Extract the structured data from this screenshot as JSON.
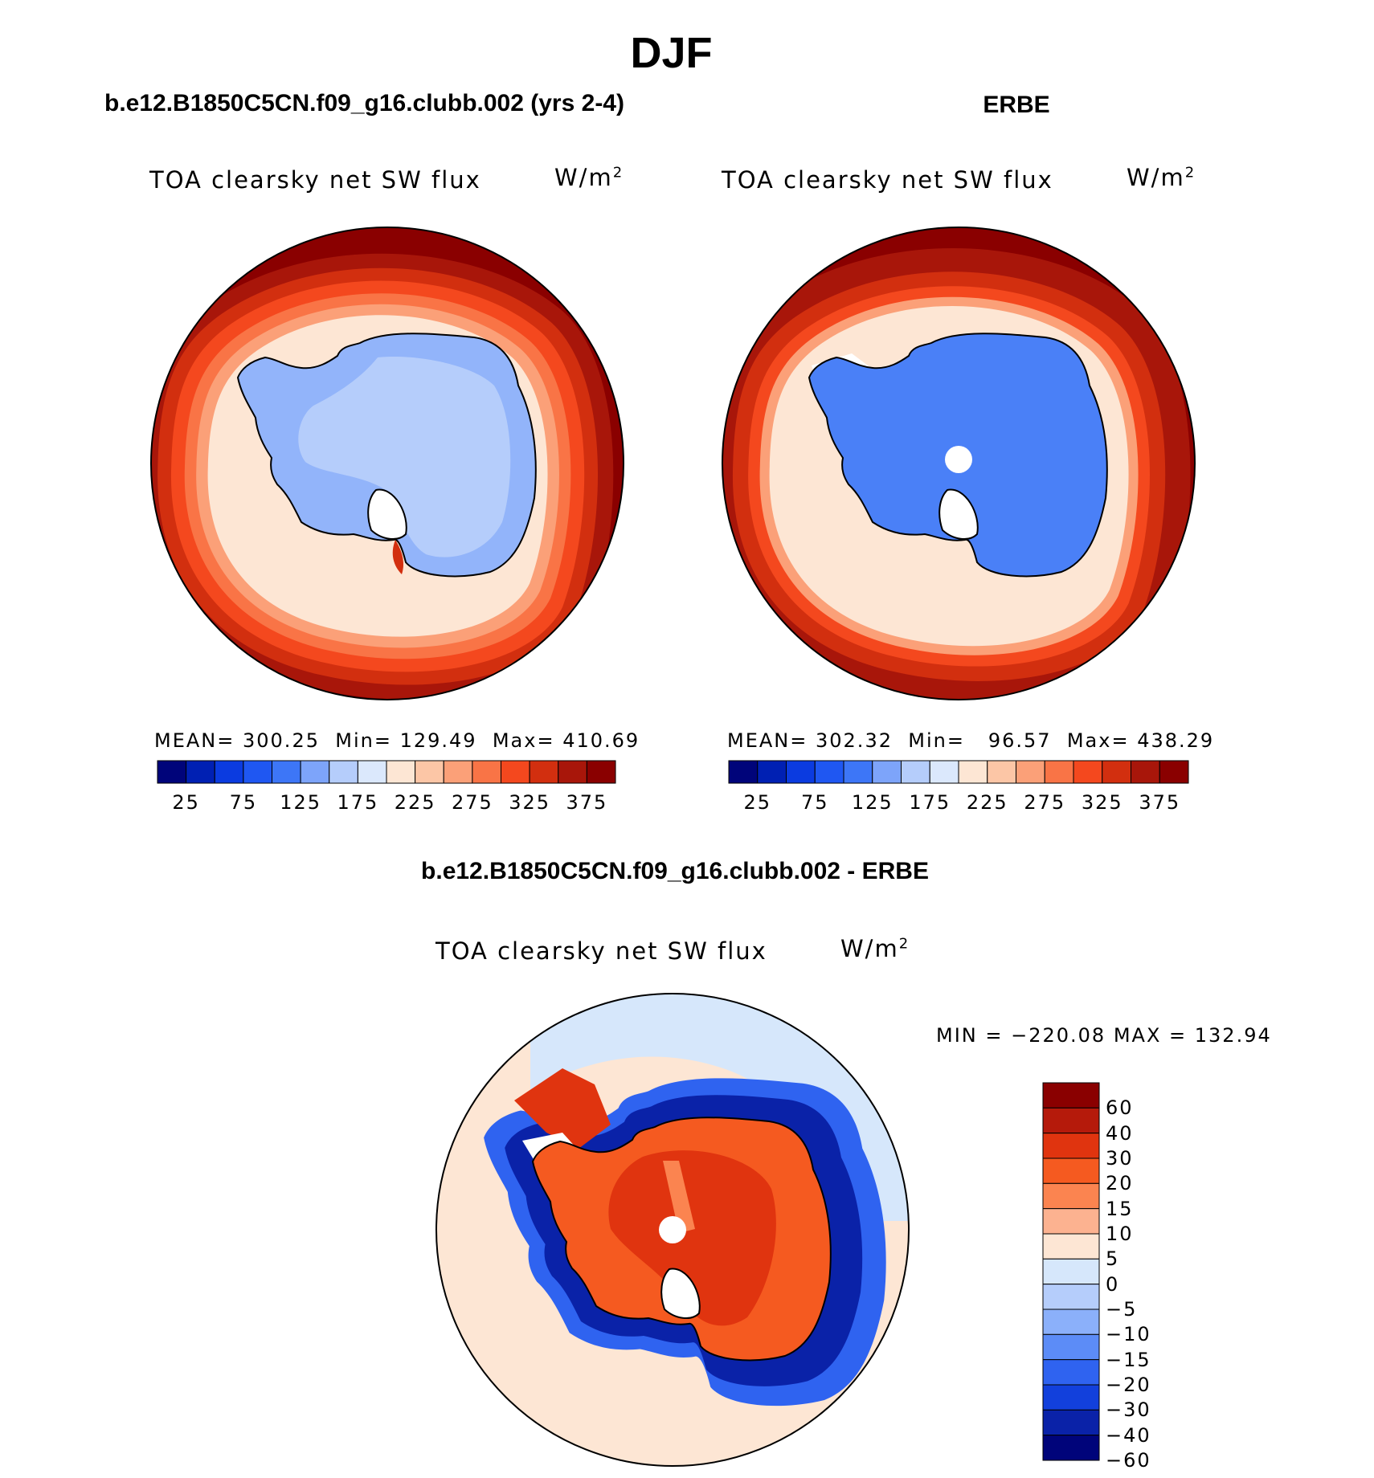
{
  "figure": {
    "title": "DJF",
    "left_panel_title": "b.e12.B1850C5CN.f09_g16.clubb.002 (yrs 2-4)",
    "right_panel_title": "ERBE",
    "difference_title": "b.e12.B1850C5CN.f09_g16.clubb.002 - ERBE"
  },
  "panels": {
    "model": {
      "variable": "TOA clearsky net SW flux",
      "unit": "W/m",
      "unit_exp": "2",
      "stats": {
        "mean_label": "MEAN=",
        "mean": "300.25",
        "min_label": "Min=",
        "min": "129.49",
        "max_label": "Max=",
        "max": "410.69"
      }
    },
    "obs": {
      "variable": "TOA clearsky net SW flux",
      "unit": "W/m",
      "unit_exp": "2",
      "stats": {
        "mean_label": "MEAN=",
        "mean": "302.32",
        "min_label": "Min=",
        "min": "96.57",
        "max_label": "Max=",
        "max": "438.29"
      }
    },
    "diff": {
      "variable": "TOA clearsky net SW flux",
      "unit": "W/m",
      "unit_exp": "2",
      "minmax": "MIN = −220.08 MAX = 132.94"
    }
  },
  "chart_data": [
    {
      "type": "heatmap",
      "name": "model",
      "projection": "south polar stereographic",
      "colorbar_ticks": [
        "25",
        "75",
        "125",
        "175",
        "225",
        "275",
        "325",
        "375"
      ],
      "levels": [
        25,
        50,
        75,
        100,
        125,
        150,
        175,
        200,
        225,
        250,
        275,
        300,
        325,
        350,
        375
      ],
      "colors": [
        "#00047a",
        "#0020b3",
        "#0b3be0",
        "#1f57f2",
        "#3d76f7",
        "#7da4fa",
        "#b5cdfb",
        "#dbe8fc",
        "#fde6d4",
        "#fcc6a6",
        "#fba078",
        "#f97446",
        "#f4481e",
        "#d22f0f",
        "#a8160a",
        "#8a0000"
      ],
      "mean": 300.25,
      "min": 129.49,
      "max": 410.69
    },
    {
      "type": "heatmap",
      "name": "obs",
      "projection": "south polar stereographic",
      "colorbar_ticks": [
        "25",
        "75",
        "125",
        "175",
        "225",
        "275",
        "325",
        "375"
      ],
      "levels": [
        25,
        50,
        75,
        100,
        125,
        150,
        175,
        200,
        225,
        250,
        275,
        300,
        325,
        350,
        375
      ],
      "colors": [
        "#00047a",
        "#0020b3",
        "#0b3be0",
        "#1f57f2",
        "#3d76f7",
        "#7da4fa",
        "#b5cdfb",
        "#dbe8fc",
        "#fde6d4",
        "#fcc6a6",
        "#fba078",
        "#f97446",
        "#f4481e",
        "#d22f0f",
        "#a8160a",
        "#8a0000"
      ],
      "mean": 302.32,
      "min": 96.57,
      "max": 438.29
    },
    {
      "type": "heatmap",
      "name": "difference",
      "projection": "south polar stereographic",
      "colorbar_ticks": [
        "60",
        "40",
        "30",
        "20",
        "15",
        "10",
        "5",
        "0",
        "−5",
        "−10",
        "−15",
        "−20",
        "−30",
        "−40",
        "−60"
      ],
      "levels": [
        60,
        40,
        30,
        20,
        15,
        10,
        5,
        0,
        -5,
        -10,
        -15,
        -20,
        -30,
        -40,
        -60
      ],
      "colors": [
        "#8a0000",
        "#b51a0b",
        "#e0340f",
        "#f55a20",
        "#fb8450",
        "#fcb290",
        "#fde6d4",
        "#d6e7fb",
        "#b5cdfb",
        "#8bb0fa",
        "#5c8cf7",
        "#2f63f0",
        "#1240dc",
        "#0a22a8",
        "#00047a"
      ],
      "min": -220.08,
      "max": 132.94
    }
  ]
}
